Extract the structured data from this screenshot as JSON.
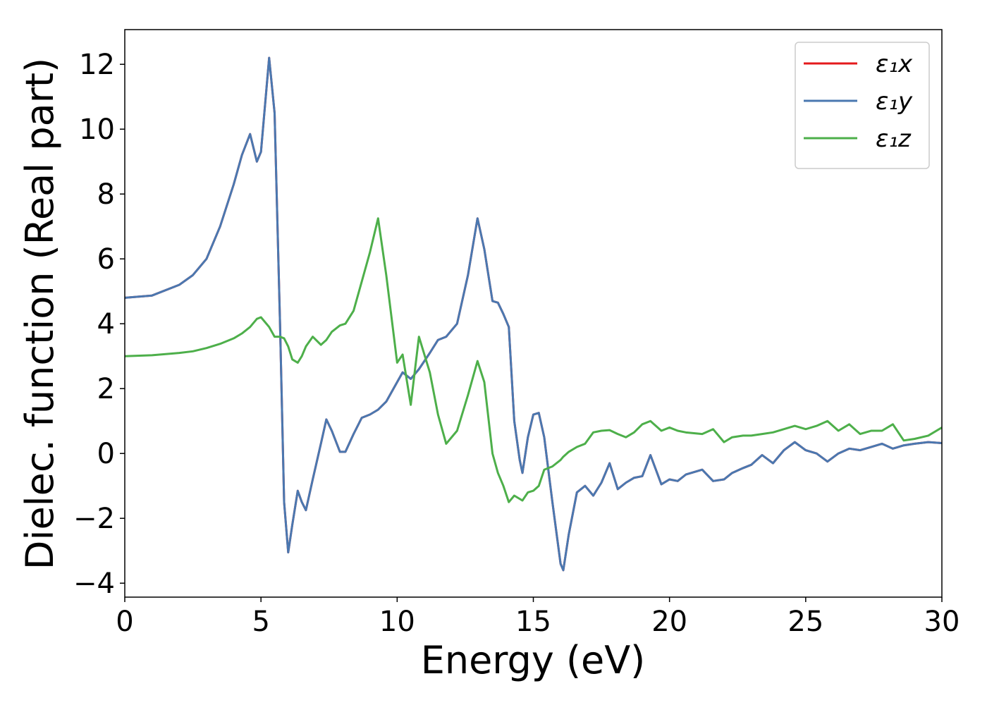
{
  "chart_data": {
    "type": "line",
    "x_label": "Energy (eV)",
    "y_label": "Dielec. function (Real part)",
    "xlim": [
      0,
      30
    ],
    "ylim": [
      -4.43,
      13.07
    ],
    "xticks": [
      0,
      5,
      10,
      15,
      20,
      25,
      30
    ],
    "yticks": [
      {
        "value": -4,
        "label": "−4"
      },
      {
        "value": -2,
        "label": "−2"
      },
      0,
      2,
      4,
      6,
      8,
      10,
      12
    ],
    "legend": "upper right",
    "x": [
      0,
      1,
      2,
      2.5,
      3,
      3.5,
      4,
      4.3,
      4.6,
      4.85,
      5.0,
      5.3,
      5.5,
      5.7,
      5.85,
      6.0,
      6.15,
      6.35,
      6.5,
      6.65,
      6.9,
      7.2,
      7.4,
      7.6,
      7.9,
      8.1,
      8.4,
      8.7,
      9.0,
      9.3,
      9.6,
      10.0,
      10.2,
      10.5,
      10.8,
      11.2,
      11.5,
      11.8,
      12.2,
      12.6,
      12.95,
      13.2,
      13.5,
      13.7,
      13.9,
      14.1,
      14.3,
      14.5,
      14.6,
      14.8,
      15.0,
      15.2,
      15.4,
      15.7,
      16.0,
      16.1,
      16.3,
      16.6,
      16.9,
      17.2,
      17.5,
      17.8,
      18.1,
      18.4,
      18.7,
      19.0,
      19.3,
      19.7,
      20.0,
      20.3,
      20.6,
      21.2,
      21.6,
      22.0,
      22.3,
      22.7,
      23.0,
      23.4,
      23.8,
      24.2,
      24.6,
      25.0,
      25.4,
      25.8,
      26.2,
      26.6,
      27.0,
      27.4,
      27.8,
      28.2,
      28.6,
      29.0,
      29.5,
      30
    ],
    "series": [
      {
        "name": "ε₁x",
        "color": "#e41a1c",
        "values": [
          4.8,
          4.87,
          5.2,
          5.5,
          6.0,
          7.0,
          8.3,
          9.2,
          9.85,
          9.0,
          9.3,
          12.2,
          10.5,
          4.0,
          -1.5,
          -3.05,
          -2.2,
          -1.15,
          -1.5,
          -1.75,
          -0.8,
          0.3,
          1.05,
          0.7,
          0.05,
          0.05,
          0.6,
          1.1,
          1.2,
          1.35,
          1.6,
          2.2,
          2.5,
          2.3,
          2.6,
          3.1,
          3.5,
          3.6,
          4.0,
          5.5,
          7.25,
          6.3,
          4.7,
          4.65,
          4.3,
          3.9,
          1.0,
          -0.2,
          -0.6,
          0.5,
          1.2,
          1.25,
          0.5,
          -1.5,
          -3.4,
          -3.6,
          -2.5,
          -1.2,
          -1.0,
          -1.3,
          -0.9,
          -0.3,
          -1.1,
          -0.9,
          -0.75,
          -0.7,
          -0.05,
          -0.95,
          -0.8,
          -0.85,
          -0.65,
          -0.5,
          -0.85,
          -0.8,
          -0.6,
          -0.45,
          -0.35,
          -0.05,
          -0.3,
          0.1,
          0.35,
          0.1,
          0.0,
          -0.25,
          0.0,
          0.15,
          0.1,
          0.2,
          0.3,
          0.15,
          0.25,
          0.3,
          0.35,
          0.32
        ]
      },
      {
        "name": "ε₁y",
        "color": "#4a78b0",
        "values": [
          4.8,
          4.87,
          5.2,
          5.5,
          6.0,
          7.0,
          8.3,
          9.2,
          9.85,
          9.0,
          9.3,
          12.2,
          10.5,
          4.0,
          -1.5,
          -3.05,
          -2.2,
          -1.15,
          -1.5,
          -1.75,
          -0.8,
          0.3,
          1.05,
          0.7,
          0.05,
          0.05,
          0.6,
          1.1,
          1.2,
          1.35,
          1.6,
          2.2,
          2.5,
          2.3,
          2.6,
          3.1,
          3.5,
          3.6,
          4.0,
          5.5,
          7.25,
          6.3,
          4.7,
          4.65,
          4.3,
          3.9,
          1.0,
          -0.2,
          -0.6,
          0.5,
          1.2,
          1.25,
          0.5,
          -1.5,
          -3.4,
          -3.6,
          -2.5,
          -1.2,
          -1.0,
          -1.3,
          -0.9,
          -0.3,
          -1.1,
          -0.9,
          -0.75,
          -0.7,
          -0.05,
          -0.95,
          -0.8,
          -0.85,
          -0.65,
          -0.5,
          -0.85,
          -0.8,
          -0.6,
          -0.45,
          -0.35,
          -0.05,
          -0.3,
          0.1,
          0.35,
          0.1,
          0.0,
          -0.25,
          0.0,
          0.15,
          0.1,
          0.2,
          0.3,
          0.15,
          0.25,
          0.3,
          0.35,
          0.32
        ]
      },
      {
        "name": "ε₁z",
        "color": "#4daf4a",
        "values": [
          3.0,
          3.03,
          3.1,
          3.15,
          3.25,
          3.38,
          3.55,
          3.7,
          3.9,
          4.15,
          4.2,
          3.9,
          3.6,
          3.6,
          3.55,
          3.3,
          2.9,
          2.8,
          3.0,
          3.3,
          3.6,
          3.35,
          3.5,
          3.75,
          3.95,
          4.0,
          4.4,
          5.3,
          6.2,
          7.25,
          5.5,
          2.8,
          3.05,
          1.5,
          3.6,
          2.5,
          1.2,
          0.3,
          0.7,
          1.8,
          2.85,
          2.2,
          0.0,
          -0.6,
          -1.0,
          -1.5,
          -1.3,
          -1.4,
          -1.45,
          -1.2,
          -1.15,
          -1.0,
          -0.5,
          -0.4,
          -0.2,
          -0.1,
          0.05,
          0.2,
          0.3,
          0.65,
          0.7,
          0.72,
          0.6,
          0.5,
          0.65,
          0.9,
          1.0,
          0.7,
          0.8,
          0.7,
          0.65,
          0.6,
          0.75,
          0.35,
          0.5,
          0.55,
          0.55,
          0.6,
          0.65,
          0.75,
          0.85,
          0.75,
          0.85,
          1.0,
          0.7,
          0.9,
          0.6,
          0.7,
          0.7,
          0.9,
          0.4,
          0.45,
          0.55,
          0.8
        ]
      }
    ]
  }
}
